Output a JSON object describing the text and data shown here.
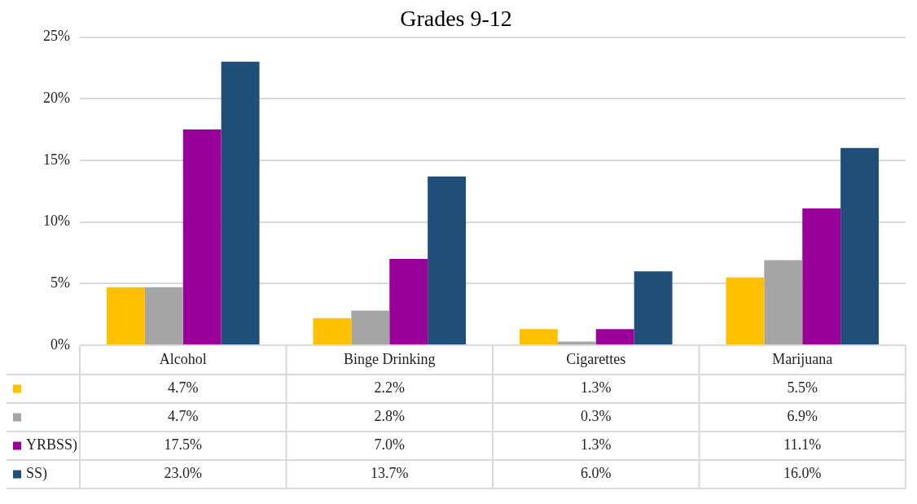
{
  "chart_data": {
    "type": "bar",
    "title": "Grades 9-12",
    "categories": [
      "Alcohol",
      "Binge Drinking",
      "Cigarettes",
      "Marijuana"
    ],
    "series": [
      {
        "color": "#ffc000",
        "values": [
          4.7,
          2.2,
          1.3,
          5.5
        ],
        "value_labels": [
          "4.7%",
          "2.2%",
          "1.3%",
          "5.5%"
        ]
      },
      {
        "color": "#a5a5a5",
        "values": [
          4.7,
          2.8,
          0.3,
          6.9
        ],
        "value_labels": [
          "4.7%",
          "2.8%",
          "0.3%",
          "6.9%"
        ]
      },
      {
        "name": "YRBSS)",
        "color": "#990099",
        "values": [
          17.5,
          7.0,
          1.3,
          11.1
        ],
        "value_labels": [
          "17.5%",
          "7.0%",
          "1.3%",
          "11.1%"
        ]
      },
      {
        "name": "SS)",
        "color": "#1f4e79",
        "values": [
          23.0,
          13.7,
          6.0,
          16.0
        ],
        "value_labels": [
          "23.0%",
          "13.7%",
          "6.0%",
          "16.0%"
        ]
      }
    ],
    "ylim": [
      0,
      25
    ],
    "yticks": [
      {
        "value": 0,
        "label": "0%"
      },
      {
        "value": 5,
        "label": "5%"
      },
      {
        "value": 10,
        "label": "10%"
      },
      {
        "value": 15,
        "label": "15%"
      },
      {
        "value": 20,
        "label": "20%"
      },
      {
        "value": 25,
        "label": "25%"
      }
    ],
    "grid": "y",
    "legend": "bottom left"
  }
}
